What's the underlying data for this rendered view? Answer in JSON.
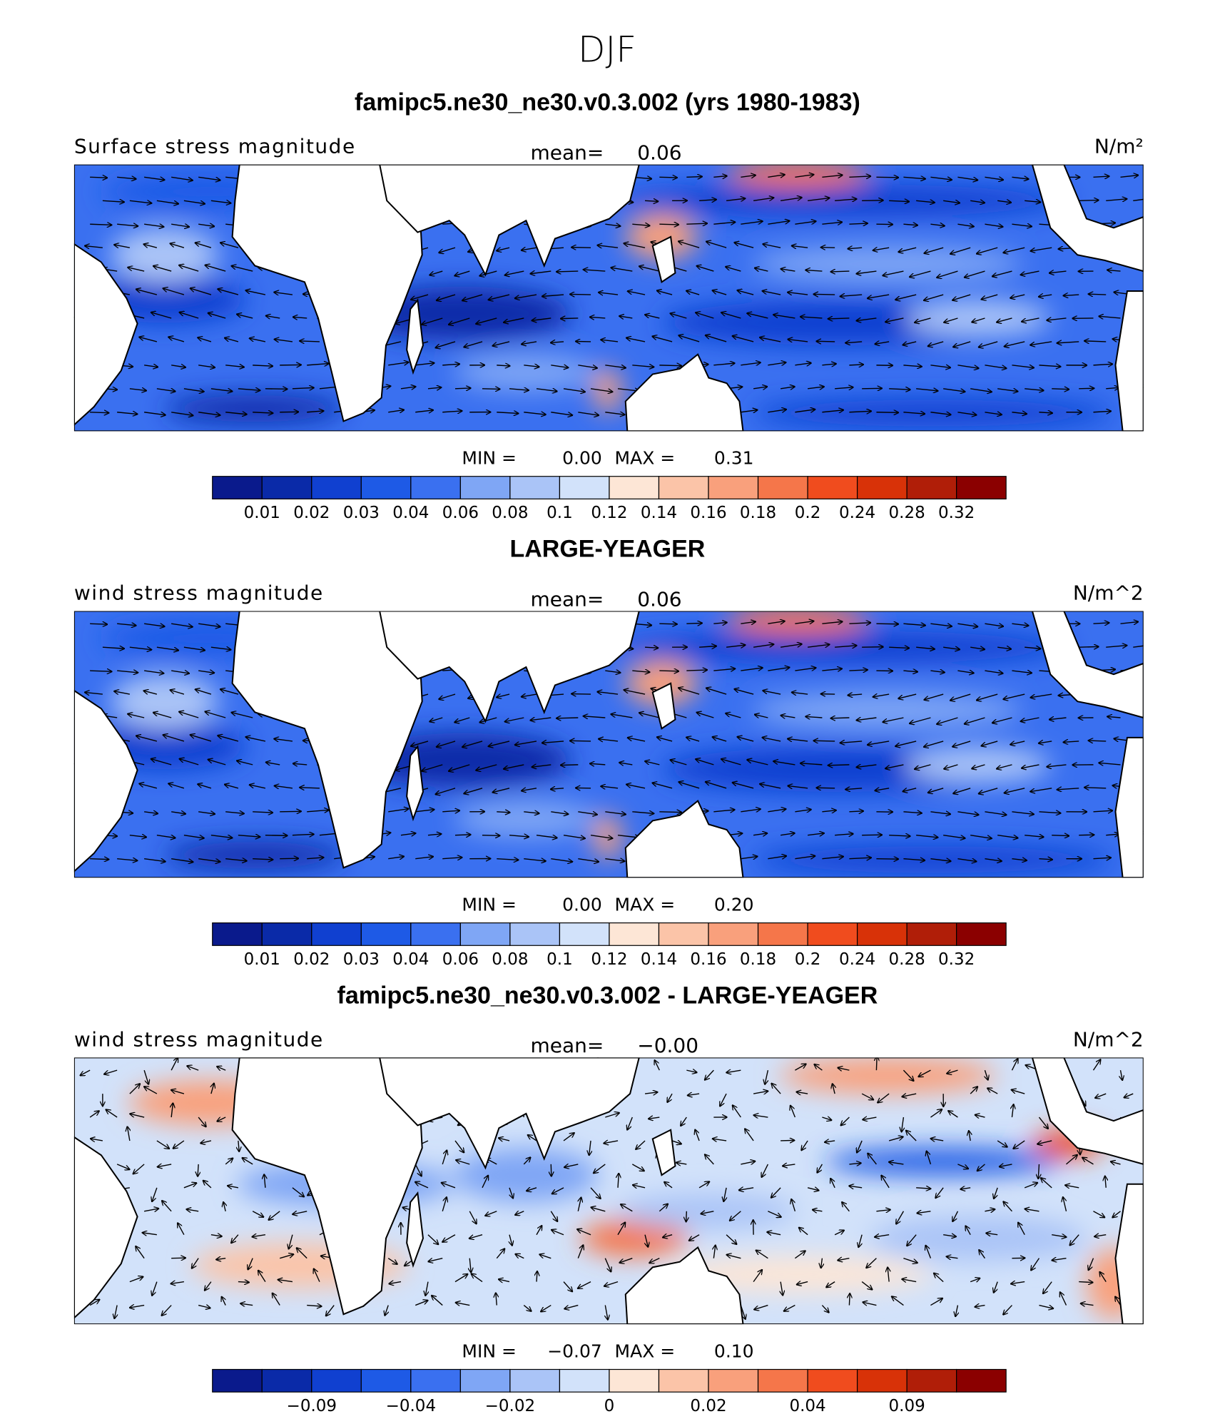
{
  "title": "DJF",
  "colors": [
    "#0a1a8c",
    "#0a2aa8",
    "#1040d0",
    "#1e5ae6",
    "#3a70f0",
    "#7fa6f5",
    "#aac4f7",
    "#d2e2fa",
    "#fde6d6",
    "#fbc4a8",
    "#f9a07c",
    "#f5764a",
    "#f04c1e",
    "#d83208",
    "#b01e08",
    "#8b0000"
  ],
  "panels": [
    {
      "title": "famipc5.ne30_ne30.v0.3.002 (yrs 1980-1983)",
      "variable": "Surface stress magnitude",
      "mean_label": "mean=",
      "mean": "0.06",
      "units": "N/m²",
      "min_label": "MIN =",
      "min": "0.00",
      "max_label": "MAX =",
      "max": "0.31",
      "levels": [
        "0.01",
        "0.02",
        "0.03",
        "0.04",
        "0.06",
        "0.08",
        "0.1",
        "0.12",
        "0.14",
        "0.16",
        "0.18",
        "0.2",
        "0.24",
        "0.28",
        "0.32"
      ]
    },
    {
      "title": "LARGE-YEAGER",
      "variable": "wind stress magnitude",
      "mean_label": "mean=",
      "mean": "0.06",
      "units": "N/m^2",
      "min_label": "MIN =",
      "min": "0.00",
      "max_label": "MAX =",
      "max": "0.20",
      "levels": [
        "0.01",
        "0.02",
        "0.03",
        "0.04",
        "0.06",
        "0.08",
        "0.1",
        "0.12",
        "0.14",
        "0.16",
        "0.18",
        "0.2",
        "0.24",
        "0.28",
        "0.32"
      ]
    },
    {
      "title": "famipc5.ne30_ne30.v0.3.002 - LARGE-YEAGER",
      "variable": "wind stress magnitude",
      "mean_label": "mean=",
      "mean": "−0.00",
      "units": "N/m^2",
      "min_label": "MIN =",
      "min": "−0.07",
      "max_label": "MAX =",
      "max": "0.10",
      "levels": [
        null,
        "−0.09",
        null,
        "−0.04",
        null,
        "−0.02",
        null,
        "0",
        null,
        "0.02",
        null,
        "0.04",
        null,
        "0.09",
        null
      ]
    }
  ]
}
